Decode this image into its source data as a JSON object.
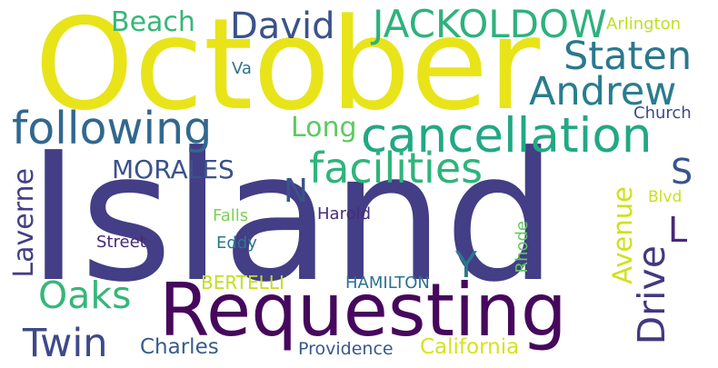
{
  "words": {
    "october": {
      "text": "October",
      "color": "#e8e419"
    },
    "island": {
      "text": "Island",
      "color": "#433e85"
    },
    "requesting": {
      "text": "Requesting",
      "color": "#46085c"
    },
    "cancellation": {
      "text": "cancellation",
      "color": "#22a884"
    },
    "following": {
      "text": "following",
      "color": "#31688e"
    },
    "facilities": {
      "text": "facilities",
      "color": "#2fb47c"
    },
    "jackoldow": {
      "text": "JACKOLDOW",
      "color": "#2db27d"
    },
    "david": {
      "text": "David",
      "color": "#3b528b"
    },
    "beach": {
      "text": "Beach",
      "color": "#35b779"
    },
    "staten": {
      "text": "Staten",
      "color": "#2a788e"
    },
    "andrew": {
      "text": "Andrew",
      "color": "#287d8e"
    },
    "arlington": {
      "text": "Arlington",
      "color": "#bddf26"
    },
    "va": {
      "text": "Va",
      "color": "#2c728e"
    },
    "church": {
      "text": "Church",
      "color": "#3e4a89"
    },
    "long": {
      "text": "Long",
      "color": "#5ec962"
    },
    "morales": {
      "text": "MORALES",
      "color": "#3b528b"
    },
    "s": {
      "text": "S",
      "color": "#3a548c"
    },
    "n": {
      "text": "N",
      "color": "#3b528b"
    },
    "laverne": {
      "text": "Laverne",
      "color": "#433e85"
    },
    "oaks": {
      "text": "Oaks",
      "color": "#35b779"
    },
    "twin": {
      "text": "Twin",
      "color": "#3e4a89"
    },
    "charles": {
      "text": "Charles",
      "color": "#365c8d"
    },
    "providence": {
      "text": "Providence",
      "color": "#38598c"
    },
    "california": {
      "text": "California",
      "color": "#d8e219"
    },
    "falls": {
      "text": "Falls",
      "color": "#7ad151"
    },
    "eddy": {
      "text": "Eddy",
      "color": "#2a788e"
    },
    "harold": {
      "text": "Harold",
      "color": "#472d7b"
    },
    "street": {
      "text": "Street",
      "color": "#482878"
    },
    "bertelli": {
      "text": "BERTELLI",
      "color": "#c2df23"
    },
    "hamilton": {
      "text": "HAMILTON",
      "color": "#2c728e"
    },
    "y": {
      "text": "Y",
      "color": "#2a788e"
    },
    "avenue": {
      "text": "Avenue",
      "color": "#d0e11c"
    },
    "drive": {
      "text": "Drive",
      "color": "#453781"
    },
    "l": {
      "text": "L",
      "color": "#482878"
    },
    "blvd": {
      "text": "Blvd",
      "color": "#c8e020"
    },
    "rhode": {
      "text": "Rhode",
      "color": "#5ec962"
    }
  }
}
